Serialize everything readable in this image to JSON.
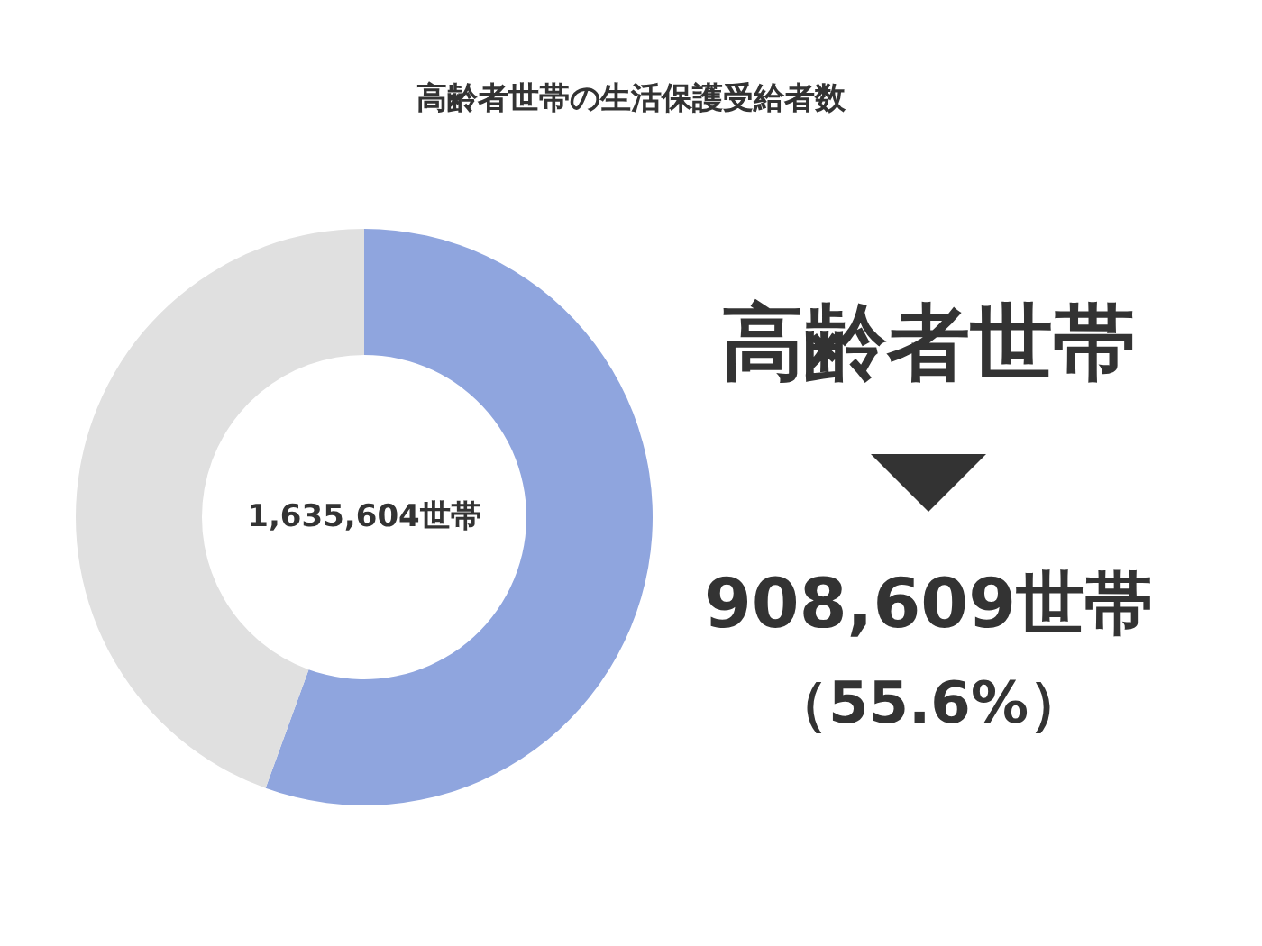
{
  "chart_data": {
    "type": "donut",
    "title": "高齢者世帯の生活保護受給者数",
    "categories": [
      "高齢者世帯",
      null
    ],
    "values": [
      908609,
      726995
    ],
    "colors": [
      "#8fa5de",
      "#e0e0e0"
    ],
    "value_labels": [
      "908,609世帯",
      null
    ],
    "annotations": [
      "1,635,604世帯",
      "（55.6%）"
    ]
  }
}
